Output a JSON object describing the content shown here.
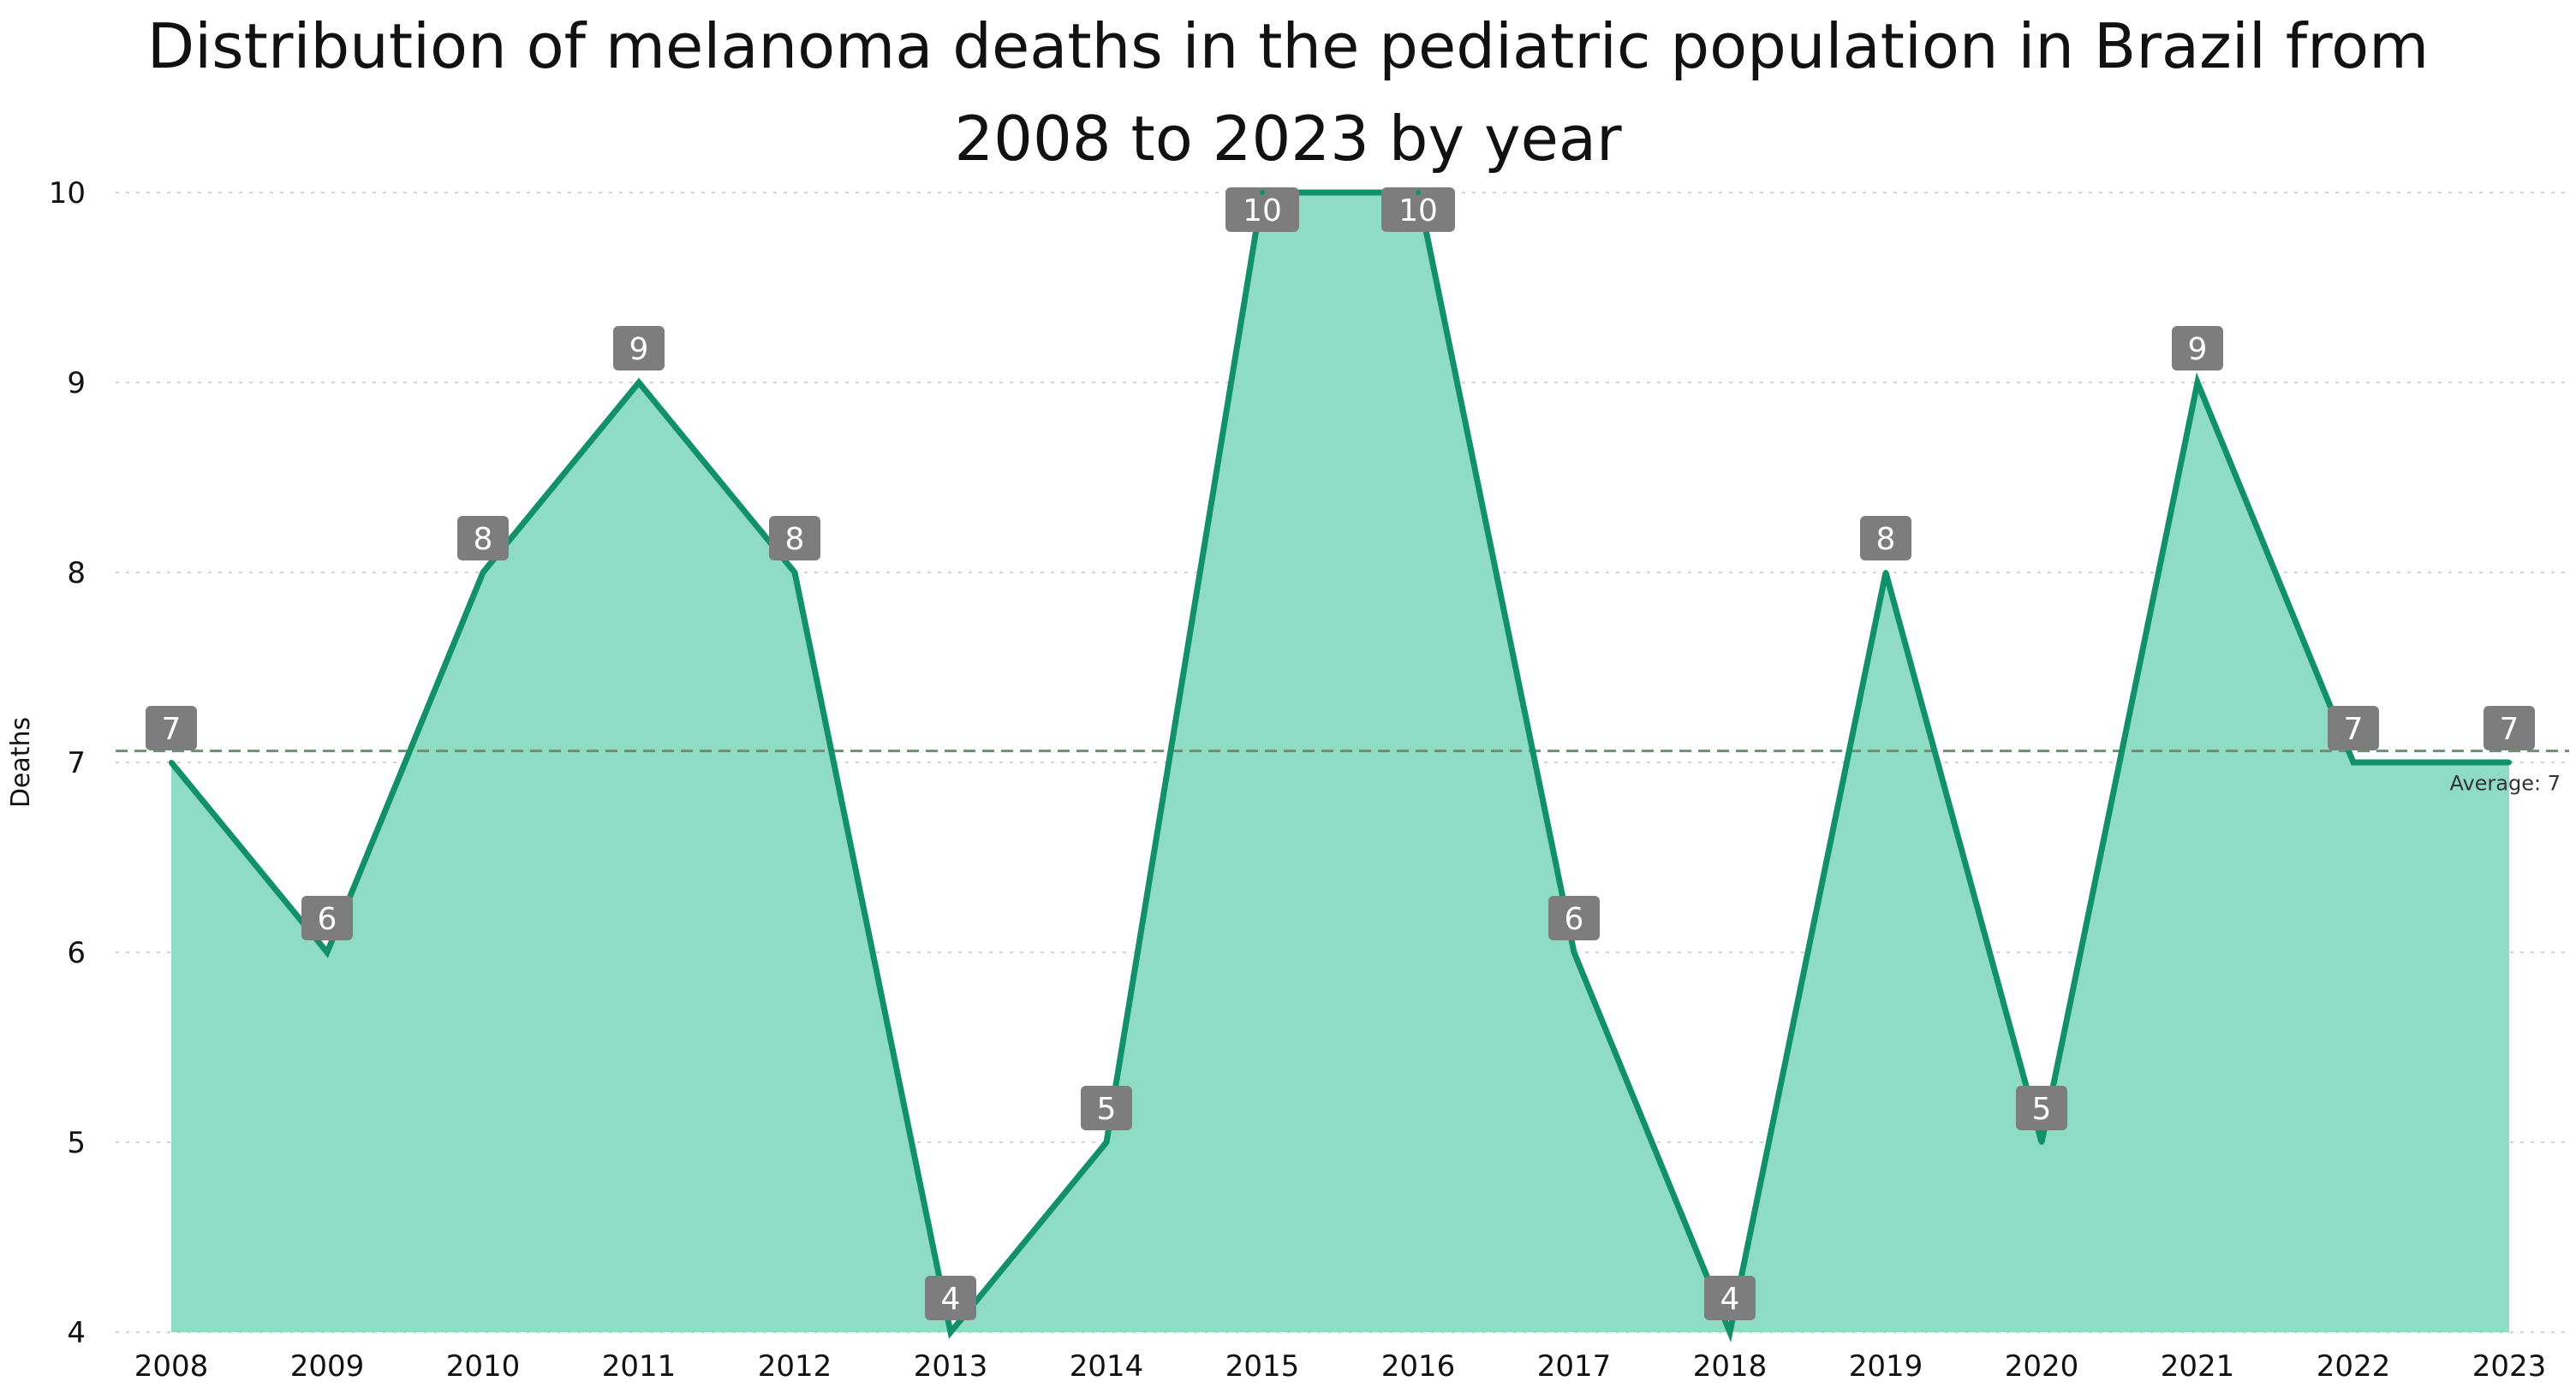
{
  "chart_data": {
    "type": "area",
    "title_lines": [
      "Distribution of melanoma deaths in the pediatric population in Brazil from",
      "2008 to 2023 by year"
    ],
    "xlabel": "",
    "ylabel": "Deaths",
    "categories": [
      "2008",
      "2009",
      "2010",
      "2011",
      "2012",
      "2013",
      "2014",
      "2015",
      "2016",
      "2017",
      "2018",
      "2019",
      "2020",
      "2021",
      "2022",
      "2023"
    ],
    "series": [
      {
        "name": "Deaths",
        "values": [
          7,
          6,
          8,
          9,
          8,
          4,
          5,
          10,
          10,
          6,
          4,
          8,
          5,
          9,
          7,
          7
        ]
      }
    ],
    "data_labels": [
      "7",
      "6",
      "8",
      "9",
      "8",
      "4",
      "5",
      "10",
      "10",
      "6",
      "4",
      "8",
      "5",
      "9",
      "7",
      "7"
    ],
    "ylim": [
      4,
      10
    ],
    "yticks": [
      "4",
      "5",
      "6",
      "7",
      "8",
      "9",
      "10"
    ],
    "grid": true,
    "average": {
      "label": "Average: 7",
      "value": 7.06
    },
    "colors": {
      "line": "#12906a",
      "fill": "#8fdcc5",
      "gridline": "#d2d2d2",
      "average_line": "#6f8f72",
      "label_box": "#7d7d7d"
    }
  }
}
